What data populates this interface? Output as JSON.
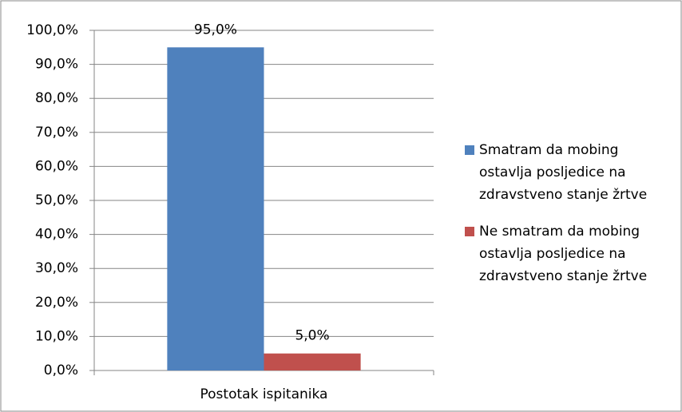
{
  "chart_data": {
    "type": "bar",
    "categories": [
      "Postotak ispitanika"
    ],
    "series": [
      {
        "name": "Smatram da mobing ostavlja posljedice na zdravstveno stanje žrtve",
        "color": "#4f81bd",
        "values": [
          95
        ],
        "value_labels": [
          "95,0%"
        ]
      },
      {
        "name": "Ne smatram da mobing ostavlja posljedice na zdravstveno stanje žrtve",
        "color": "#c0504d",
        "values": [
          5
        ],
        "value_labels": [
          "5,0%"
        ]
      }
    ],
    "ylim": [
      0,
      100
    ],
    "yticks": [
      {
        "value": 0,
        "label": "0,0%"
      },
      {
        "value": 10,
        "label": "10,0%"
      },
      {
        "value": 20,
        "label": "20,0%"
      },
      {
        "value": 30,
        "label": "30,0%"
      },
      {
        "value": 40,
        "label": "40,0%"
      },
      {
        "value": 50,
        "label": "50,0%"
      },
      {
        "value": 60,
        "label": "60,0%"
      },
      {
        "value": 70,
        "label": "70,0%"
      },
      {
        "value": 80,
        "label": "80,0%"
      },
      {
        "value": 90,
        "label": "90,0%"
      },
      {
        "value": 100,
        "label": "100,0%"
      }
    ],
    "grid": true
  }
}
